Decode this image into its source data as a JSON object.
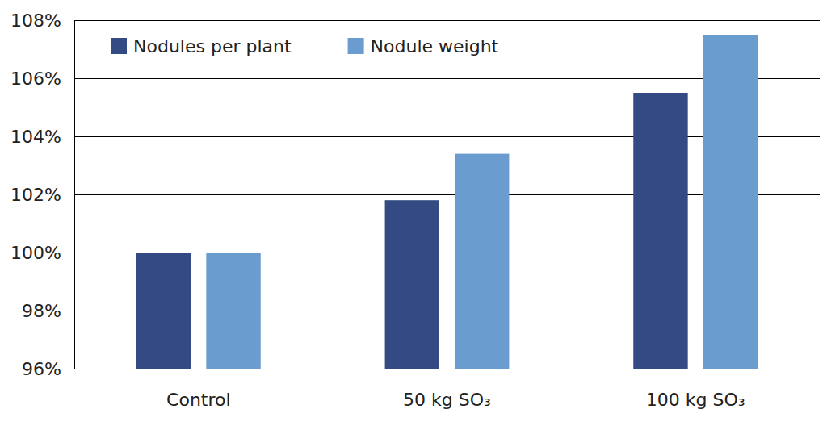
{
  "chart_data": {
    "type": "bar",
    "categories": [
      "Control",
      "50 kg SO₃",
      "100 kg SO₃"
    ],
    "series": [
      {
        "name": "Nodules per plant",
        "color": "#334b82",
        "values": [
          100,
          101.8,
          105.5
        ]
      },
      {
        "name": "Nodule weight",
        "color": "#6b9ccf",
        "values": [
          100,
          103.4,
          107.5
        ]
      }
    ],
    "ylim": [
      96,
      108
    ],
    "yticks": [
      {
        "value": 96,
        "label": "96%"
      },
      {
        "value": 98,
        "label": "98%"
      },
      {
        "value": 100,
        "label": "100%"
      },
      {
        "value": 102,
        "label": "102%"
      },
      {
        "value": 104,
        "label": "104%"
      },
      {
        "value": 106,
        "label": "106%"
      },
      {
        "value": 108,
        "label": "108%"
      }
    ],
    "grid": true,
    "legend": "top-left"
  }
}
